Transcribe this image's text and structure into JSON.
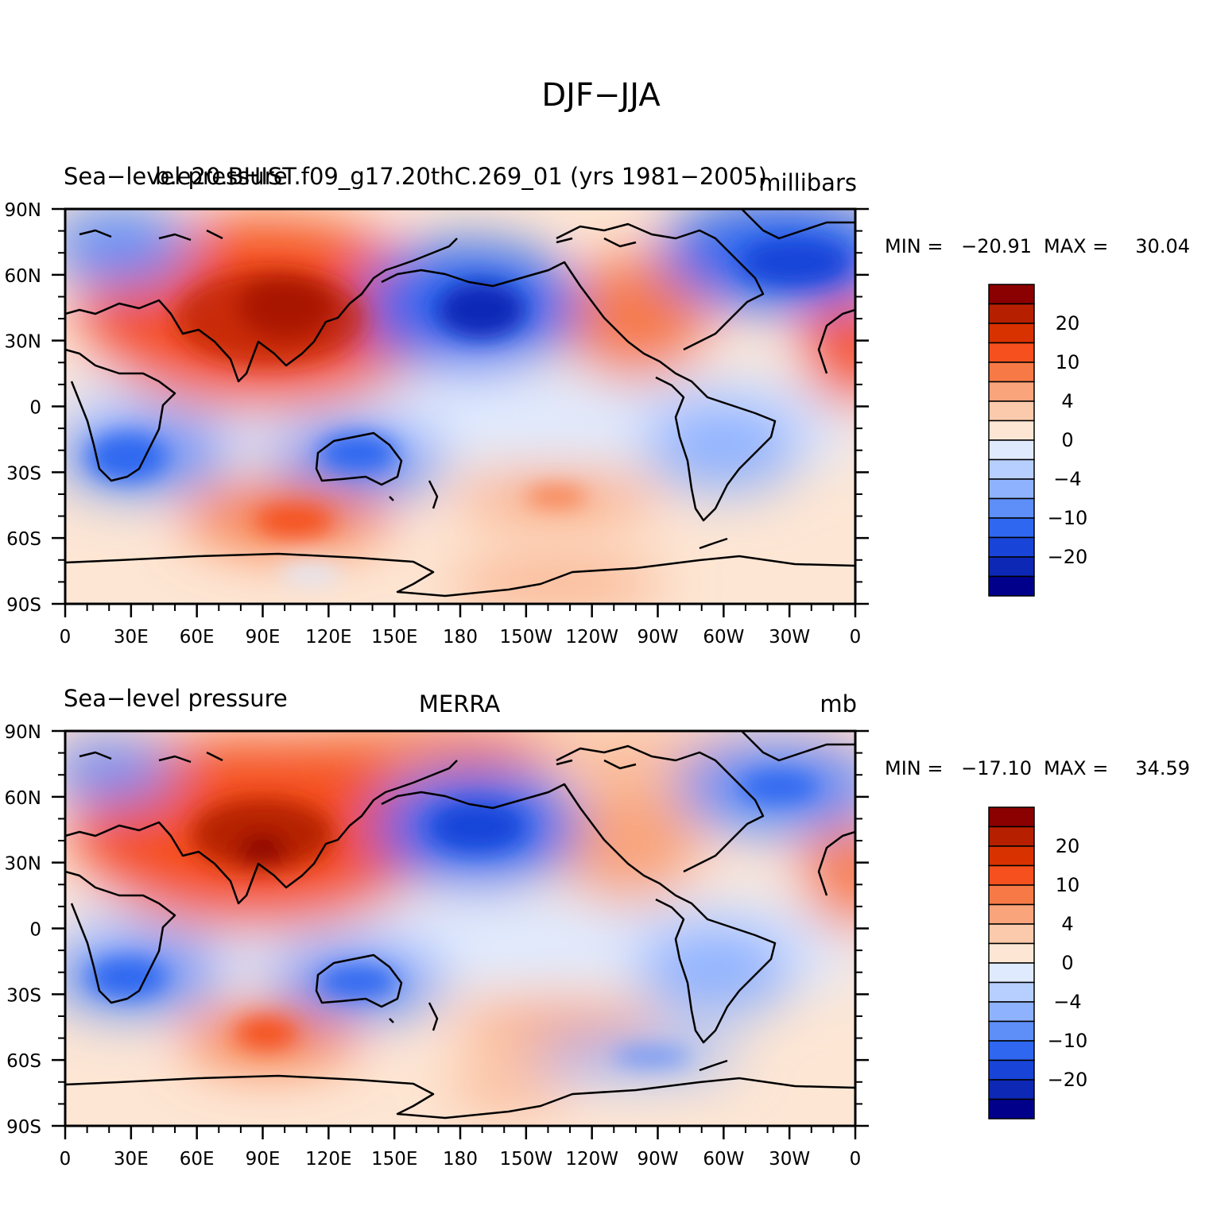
{
  "title": "DJF−JJA",
  "panels": [
    {
      "left_title": "Sea−level pressure",
      "center_title": "b.e20.BHIST.f09_g17.20thC.269_01 (yrs 1981−2005)",
      "units": "millibars",
      "stats": {
        "min_label": "MIN =",
        "min": "−20.91",
        "max_label": "MAX =",
        "max": "30.04"
      }
    },
    {
      "left_title": "Sea−level pressure",
      "center_title": "MERRA",
      "units": "mb",
      "stats": {
        "min_label": "MIN =",
        "min": "−17.10",
        "max_label": "MAX =",
        "max": "34.59"
      }
    }
  ],
  "lat_labels": [
    "90N",
    "60N",
    "30N",
    "0",
    "30S",
    "60S",
    "90S"
  ],
  "lon_labels": [
    "0",
    "30E",
    "60E",
    "90E",
    "120E",
    "150E",
    "180",
    "150W",
    "120W",
    "90W",
    "60W",
    "30W",
    "0"
  ],
  "colorbar": {
    "labels": [
      "20",
      "10",
      "4",
      "0",
      "−4",
      "−10",
      "−20"
    ],
    "colors": [
      "#8b0000",
      "#b62000",
      "#d83200",
      "#f5501d",
      "#f77a46",
      "#f9a47a",
      "#fbcaac",
      "#fde6d4",
      "#dfeaff",
      "#b7cfff",
      "#8fb2ff",
      "#5e8ef8",
      "#2f67f0",
      "#1845d8",
      "#0c28b5",
      "#00008b"
    ]
  }
}
